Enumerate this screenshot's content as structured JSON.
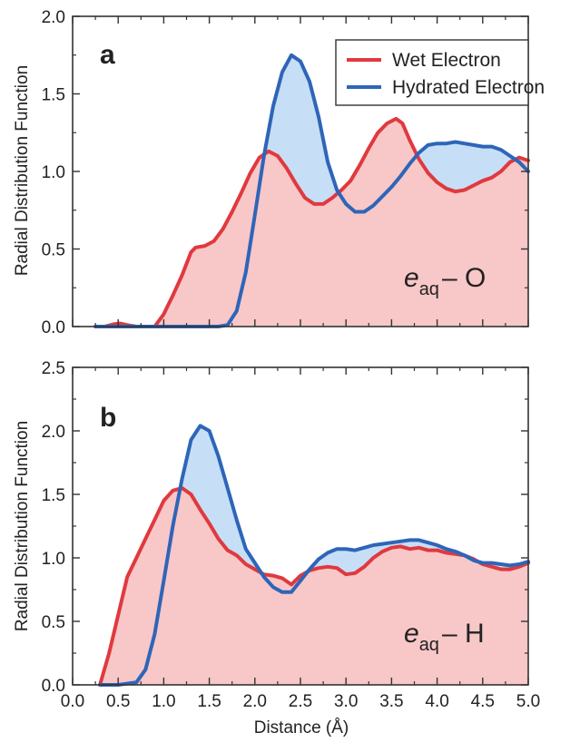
{
  "chart_data": [
    {
      "type": "area",
      "panel_label": "a",
      "ylabel": "Radial Distribution Function",
      "xlabel": "",
      "xlim": [
        0.0,
        5.0
      ],
      "ylim": [
        0.0,
        2.0
      ],
      "yticks": [
        "0.0",
        "0.5",
        "1.0",
        "1.5",
        "2.0"
      ],
      "annotation": {
        "main": "e",
        "sub": "aq",
        "rest": "– O"
      },
      "legend": {
        "placement": "top-right",
        "entries": [
          "Wet Electron",
          "Hydrated Electron"
        ]
      },
      "series": [
        {
          "name": "Wet Electron",
          "color": "#e0393e",
          "fill": "#f8c7c8",
          "points": [
            [
              0.25,
              0.0
            ],
            [
              0.35,
              0.0
            ],
            [
              0.45,
              0.015
            ],
            [
              0.52,
              0.02
            ],
            [
              0.6,
              0.01
            ],
            [
              0.7,
              0.0
            ],
            [
              0.8,
              0.0
            ],
            [
              0.9,
              0.0
            ],
            [
              1.0,
              0.08
            ],
            [
              1.1,
              0.2
            ],
            [
              1.2,
              0.33
            ],
            [
              1.3,
              0.48
            ],
            [
              1.35,
              0.51
            ],
            [
              1.45,
              0.52
            ],
            [
              1.55,
              0.55
            ],
            [
              1.65,
              0.63
            ],
            [
              1.75,
              0.74
            ],
            [
              1.85,
              0.86
            ],
            [
              1.95,
              0.99
            ],
            [
              2.05,
              1.09
            ],
            [
              2.15,
              1.13
            ],
            [
              2.25,
              1.1
            ],
            [
              2.35,
              1.02
            ],
            [
              2.45,
              0.92
            ],
            [
              2.55,
              0.83
            ],
            [
              2.65,
              0.79
            ],
            [
              2.75,
              0.79
            ],
            [
              2.85,
              0.83
            ],
            [
              2.95,
              0.88
            ],
            [
              3.05,
              0.94
            ],
            [
              3.15,
              1.04
            ],
            [
              3.25,
              1.15
            ],
            [
              3.35,
              1.25
            ],
            [
              3.45,
              1.31
            ],
            [
              3.55,
              1.34
            ],
            [
              3.62,
              1.31
            ],
            [
              3.7,
              1.2
            ],
            [
              3.8,
              1.08
            ],
            [
              3.9,
              0.99
            ],
            [
              4.0,
              0.93
            ],
            [
              4.1,
              0.89
            ],
            [
              4.2,
              0.87
            ],
            [
              4.3,
              0.88
            ],
            [
              4.4,
              0.91
            ],
            [
              4.5,
              0.94
            ],
            [
              4.6,
              0.96
            ],
            [
              4.7,
              1.0
            ],
            [
              4.8,
              1.06
            ],
            [
              4.9,
              1.09
            ],
            [
              5.0,
              1.07
            ]
          ]
        },
        {
          "name": "Hydrated Electron",
          "color": "#2e65b8",
          "fill": "#c6dff6",
          "points": [
            [
              0.25,
              0.0
            ],
            [
              0.5,
              0.0
            ],
            [
              0.8,
              0.0
            ],
            [
              1.0,
              0.0
            ],
            [
              1.2,
              0.0
            ],
            [
              1.4,
              0.0
            ],
            [
              1.6,
              0.0
            ],
            [
              1.7,
              0.01
            ],
            [
              1.8,
              0.1
            ],
            [
              1.9,
              0.35
            ],
            [
              2.0,
              0.72
            ],
            [
              2.1,
              1.1
            ],
            [
              2.2,
              1.42
            ],
            [
              2.3,
              1.64
            ],
            [
              2.4,
              1.75
            ],
            [
              2.5,
              1.71
            ],
            [
              2.6,
              1.58
            ],
            [
              2.7,
              1.35
            ],
            [
              2.8,
              1.06
            ],
            [
              2.9,
              0.88
            ],
            [
              3.0,
              0.79
            ],
            [
              3.1,
              0.74
            ],
            [
              3.2,
              0.74
            ],
            [
              3.3,
              0.78
            ],
            [
              3.4,
              0.84
            ],
            [
              3.5,
              0.9
            ],
            [
              3.6,
              0.97
            ],
            [
              3.7,
              1.05
            ],
            [
              3.8,
              1.12
            ],
            [
              3.9,
              1.17
            ],
            [
              4.0,
              1.18
            ],
            [
              4.1,
              1.18
            ],
            [
              4.2,
              1.19
            ],
            [
              4.3,
              1.18
            ],
            [
              4.4,
              1.17
            ],
            [
              4.5,
              1.16
            ],
            [
              4.6,
              1.16
            ],
            [
              4.7,
              1.14
            ],
            [
              4.8,
              1.1
            ],
            [
              4.9,
              1.06
            ],
            [
              5.0,
              1.0
            ]
          ]
        }
      ]
    },
    {
      "type": "area",
      "panel_label": "b",
      "ylabel": "Radial Distribution Function",
      "xlabel": "Distance (Å)",
      "xlim": [
        0.0,
        5.0
      ],
      "ylim": [
        0.0,
        2.5
      ],
      "yticks": [
        "0.0",
        "0.5",
        "1.0",
        "1.5",
        "2.0",
        "2.5"
      ],
      "xticks": [
        "0.0",
        "0.5",
        "1.0",
        "1.5",
        "2.0",
        "2.5",
        "3.0",
        "3.5",
        "4.0",
        "4.5",
        "5.0"
      ],
      "annotation": {
        "main": "e",
        "sub": "aq",
        "rest": "– H"
      },
      "series": [
        {
          "name": "Wet Electron",
          "color": "#e0393e",
          "fill": "#f8c7c8",
          "points": [
            [
              0.3,
              0.0
            ],
            [
              0.4,
              0.25
            ],
            [
              0.5,
              0.55
            ],
            [
              0.6,
              0.85
            ],
            [
              0.7,
              1.0
            ],
            [
              0.8,
              1.15
            ],
            [
              0.9,
              1.3
            ],
            [
              1.0,
              1.45
            ],
            [
              1.1,
              1.53
            ],
            [
              1.2,
              1.55
            ],
            [
              1.3,
              1.5
            ],
            [
              1.4,
              1.38
            ],
            [
              1.5,
              1.27
            ],
            [
              1.6,
              1.15
            ],
            [
              1.7,
              1.06
            ],
            [
              1.8,
              1.02
            ],
            [
              1.9,
              0.95
            ],
            [
              2.0,
              0.91
            ],
            [
              2.1,
              0.87
            ],
            [
              2.2,
              0.86
            ],
            [
              2.3,
              0.84
            ],
            [
              2.4,
              0.79
            ],
            [
              2.5,
              0.86
            ],
            [
              2.6,
              0.9
            ],
            [
              2.7,
              0.92
            ],
            [
              2.8,
              0.93
            ],
            [
              2.9,
              0.92
            ],
            [
              3.0,
              0.87
            ],
            [
              3.1,
              0.88
            ],
            [
              3.2,
              0.93
            ],
            [
              3.3,
              1.0
            ],
            [
              3.4,
              1.05
            ],
            [
              3.5,
              1.08
            ],
            [
              3.6,
              1.09
            ],
            [
              3.7,
              1.07
            ],
            [
              3.8,
              1.08
            ],
            [
              3.9,
              1.06
            ],
            [
              4.0,
              1.06
            ],
            [
              4.1,
              1.04
            ],
            [
              4.2,
              1.03
            ],
            [
              4.3,
              1.02
            ],
            [
              4.4,
              0.99
            ],
            [
              4.5,
              0.95
            ],
            [
              4.6,
              0.93
            ],
            [
              4.7,
              0.91
            ],
            [
              4.8,
              0.91
            ],
            [
              4.9,
              0.93
            ],
            [
              5.0,
              0.96
            ]
          ]
        },
        {
          "name": "Hydrated Electron",
          "color": "#2e65b8",
          "fill": "#c6dff6",
          "points": [
            [
              0.3,
              0.0
            ],
            [
              0.5,
              0.0
            ],
            [
              0.7,
              0.02
            ],
            [
              0.8,
              0.12
            ],
            [
              0.9,
              0.4
            ],
            [
              1.0,
              0.82
            ],
            [
              1.1,
              1.25
            ],
            [
              1.2,
              1.62
            ],
            [
              1.3,
              1.93
            ],
            [
              1.4,
              2.04
            ],
            [
              1.5,
              2.0
            ],
            [
              1.6,
              1.8
            ],
            [
              1.7,
              1.55
            ],
            [
              1.8,
              1.3
            ],
            [
              1.9,
              1.07
            ],
            [
              2.0,
              0.96
            ],
            [
              2.1,
              0.85
            ],
            [
              2.2,
              0.77
            ],
            [
              2.3,
              0.73
            ],
            [
              2.4,
              0.73
            ],
            [
              2.5,
              0.82
            ],
            [
              2.6,
              0.91
            ],
            [
              2.7,
              0.99
            ],
            [
              2.8,
              1.04
            ],
            [
              2.9,
              1.07
            ],
            [
              3.0,
              1.07
            ],
            [
              3.1,
              1.06
            ],
            [
              3.2,
              1.08
            ],
            [
              3.3,
              1.1
            ],
            [
              3.4,
              1.11
            ],
            [
              3.5,
              1.12
            ],
            [
              3.6,
              1.13
            ],
            [
              3.7,
              1.14
            ],
            [
              3.8,
              1.14
            ],
            [
              3.9,
              1.12
            ],
            [
              4.0,
              1.1
            ],
            [
              4.1,
              1.07
            ],
            [
              4.2,
              1.05
            ],
            [
              4.3,
              1.02
            ],
            [
              4.4,
              0.98
            ],
            [
              4.5,
              0.96
            ],
            [
              4.6,
              0.96
            ],
            [
              4.7,
              0.95
            ],
            [
              4.8,
              0.94
            ],
            [
              4.9,
              0.95
            ],
            [
              5.0,
              0.97
            ]
          ]
        }
      ]
    }
  ]
}
